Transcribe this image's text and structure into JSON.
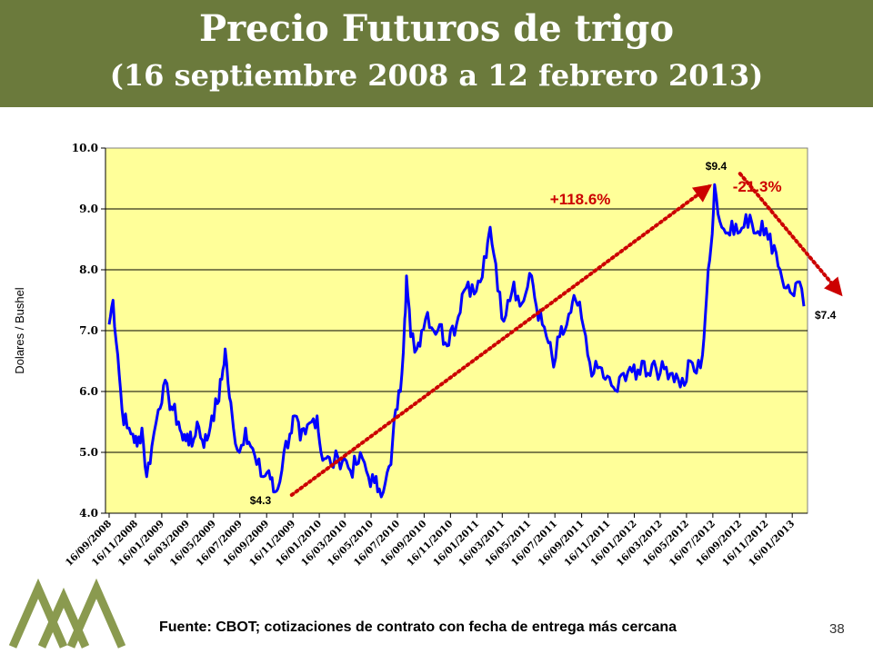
{
  "title": "Precio Futuros de trigo",
  "subtitle": "(16 septiembre 2008 a 12 febrero 2013)",
  "source": "Fuente: CBOT; cotizaciones de contrato con fecha de entrega más cercana",
  "page_number": "38",
  "colors": {
    "band": "#6b7a3c",
    "plot_background": "#ffff99",
    "series": "#0000ff",
    "annotation": "#cc0000",
    "logo": "#8a9a4f"
  },
  "chart_data": {
    "type": "line",
    "ylabel": "Dolares / Bushel",
    "ylim": [
      4.0,
      10.0
    ],
    "yticks": [
      "4.0",
      "5.0",
      "6.0",
      "7.0",
      "8.0",
      "9.0",
      "10.0"
    ],
    "xticks": [
      "16/09/2008",
      "16/11/2008",
      "16/01/2009",
      "16/03/2009",
      "16/05/2009",
      "16/07/2009",
      "16/09/2009",
      "16/11/2009",
      "16/01/2010",
      "16/03/2010",
      "16/05/2010",
      "16/07/2010",
      "16/09/2010",
      "16/11/2010",
      "16/01/2011",
      "16/03/2011",
      "16/05/2011",
      "16/07/2011",
      "16/09/2011",
      "16/11/2011",
      "16/01/2012",
      "16/03/2012",
      "16/05/2012",
      "16/07/2012",
      "16/09/2012",
      "16/11/2012",
      "16/01/2013"
    ],
    "grid": true,
    "series": [
      {
        "points": [
          [
            "2008-09-16",
            7.1
          ],
          [
            "2008-09-25",
            7.5
          ],
          [
            "2008-10-06",
            6.6
          ],
          [
            "2008-10-16",
            5.7
          ],
          [
            "2008-10-28",
            5.4
          ],
          [
            "2008-11-10",
            5.3
          ],
          [
            "2008-11-20",
            5.1
          ],
          [
            "2008-12-01",
            5.4
          ],
          [
            "2008-12-12",
            4.6
          ],
          [
            "2008-12-24",
            5.1
          ],
          [
            "2009-01-08",
            5.7
          ],
          [
            "2009-01-20",
            6.1
          ],
          [
            "2009-02-01",
            5.9
          ],
          [
            "2009-02-10",
            5.7
          ],
          [
            "2009-02-24",
            5.5
          ],
          [
            "2009-03-06",
            5.2
          ],
          [
            "2009-03-16",
            5.3
          ],
          [
            "2009-03-27",
            5.1
          ],
          [
            "2009-04-08",
            5.5
          ],
          [
            "2009-04-20",
            5.2
          ],
          [
            "2009-05-01",
            5.2
          ],
          [
            "2009-05-12",
            5.6
          ],
          [
            "2009-05-25",
            5.8
          ],
          [
            "2009-06-04",
            6.2
          ],
          [
            "2009-06-12",
            6.7
          ],
          [
            "2009-06-22",
            5.9
          ],
          [
            "2009-07-01",
            5.4
          ],
          [
            "2009-07-15",
            5.0
          ],
          [
            "2009-07-29",
            5.4
          ],
          [
            "2009-08-10",
            5.1
          ],
          [
            "2009-08-24",
            4.8
          ],
          [
            "2009-09-08",
            4.6
          ],
          [
            "2009-09-21",
            4.7
          ],
          [
            "2009-10-02",
            4.35
          ],
          [
            "2009-10-12",
            4.4
          ],
          [
            "2009-10-26",
            5.0
          ],
          [
            "2009-11-09",
            5.3
          ],
          [
            "2009-11-20",
            5.6
          ],
          [
            "2009-12-03",
            5.2
          ],
          [
            "2009-12-15",
            5.3
          ],
          [
            "2009-12-29",
            5.5
          ],
          [
            "2010-01-11",
            5.6
          ],
          [
            "2010-01-20",
            5.0
          ],
          [
            "2010-02-01",
            4.9
          ],
          [
            "2010-02-12",
            4.8
          ],
          [
            "2010-03-01",
            4.9
          ],
          [
            "2010-03-15",
            4.9
          ],
          [
            "2010-03-29",
            4.7
          ],
          [
            "2010-04-12",
            4.8
          ],
          [
            "2010-04-26",
            4.9
          ],
          [
            "2010-05-10",
            4.6
          ],
          [
            "2010-05-24",
            4.5
          ],
          [
            "2010-06-04",
            4.4
          ],
          [
            "2010-06-18",
            4.5
          ],
          [
            "2010-07-01",
            4.8
          ],
          [
            "2010-07-12",
            5.7
          ],
          [
            "2010-07-23",
            6.0
          ],
          [
            "2010-08-02",
            7.2
          ],
          [
            "2010-08-06",
            7.9
          ],
          [
            "2010-08-16",
            6.9
          ],
          [
            "2010-08-30",
            6.7
          ],
          [
            "2010-09-10",
            7.0
          ],
          [
            "2010-09-24",
            7.3
          ],
          [
            "2010-10-08",
            7.0
          ],
          [
            "2010-10-22",
            7.1
          ],
          [
            "2010-11-04",
            6.8
          ],
          [
            "2010-11-16",
            7.0
          ],
          [
            "2010-11-30",
            7.1
          ],
          [
            "2010-12-13",
            7.6
          ],
          [
            "2010-12-27",
            7.8
          ],
          [
            "2011-01-10",
            7.6
          ],
          [
            "2011-01-24",
            7.8
          ],
          [
            "2011-02-07",
            8.2
          ],
          [
            "2011-02-16",
            8.7
          ],
          [
            "2011-03-01",
            8.1
          ],
          [
            "2011-03-15",
            7.2
          ],
          [
            "2011-03-29",
            7.5
          ],
          [
            "2011-04-12",
            7.8
          ],
          [
            "2011-04-26",
            7.4
          ],
          [
            "2011-05-09",
            7.6
          ],
          [
            "2011-05-23",
            7.9
          ],
          [
            "2011-06-03",
            7.4
          ],
          [
            "2011-06-17",
            7.1
          ],
          [
            "2011-07-01",
            6.8
          ],
          [
            "2011-07-13",
            6.4
          ],
          [
            "2011-07-27",
            6.9
          ],
          [
            "2011-08-08",
            7.0
          ],
          [
            "2011-08-22",
            7.3
          ],
          [
            "2011-09-02",
            7.5
          ],
          [
            "2011-09-16",
            7.2
          ],
          [
            "2011-09-30",
            6.6
          ],
          [
            "2011-10-14",
            6.3
          ],
          [
            "2011-10-28",
            6.4
          ],
          [
            "2011-11-10",
            6.2
          ],
          [
            "2011-11-24",
            6.1
          ],
          [
            "2011-12-08",
            6.0
          ],
          [
            "2011-12-22",
            6.3
          ],
          [
            "2012-01-06",
            6.4
          ],
          [
            "2012-01-20",
            6.2
          ],
          [
            "2012-02-03",
            6.5
          ],
          [
            "2012-02-17",
            6.3
          ],
          [
            "2012-03-02",
            6.5
          ],
          [
            "2012-03-16",
            6.3
          ],
          [
            "2012-03-30",
            6.4
          ],
          [
            "2012-04-13",
            6.3
          ],
          [
            "2012-04-27",
            6.2
          ],
          [
            "2012-05-11",
            6.1
          ],
          [
            "2012-05-25",
            6.5
          ],
          [
            "2012-06-08",
            6.3
          ],
          [
            "2012-06-22",
            6.6
          ],
          [
            "2012-07-02",
            7.6
          ],
          [
            "2012-07-12",
            8.4
          ],
          [
            "2012-07-20",
            9.4
          ],
          [
            "2012-08-01",
            8.8
          ],
          [
            "2012-08-15",
            8.6
          ],
          [
            "2012-08-29",
            8.8
          ],
          [
            "2012-09-12",
            8.6
          ],
          [
            "2012-09-26",
            8.7
          ],
          [
            "2012-10-10",
            8.9
          ],
          [
            "2012-10-24",
            8.6
          ],
          [
            "2012-11-07",
            8.8
          ],
          [
            "2012-11-21",
            8.5
          ],
          [
            "2012-12-05",
            8.4
          ],
          [
            "2012-12-19",
            8.0
          ],
          [
            "2013-01-02",
            7.7
          ],
          [
            "2013-01-16",
            7.6
          ],
          [
            "2013-01-28",
            7.8
          ],
          [
            "2013-02-12",
            7.4
          ]
        ]
      }
    ],
    "annotations": [
      {
        "text": "$4.3",
        "x": "2009-10-02",
        "y": 4.3
      },
      {
        "text": "$9.4",
        "x": "2012-07-20",
        "y": 9.4
      },
      {
        "text": "$7.4",
        "x": "2013-02-12",
        "y": 7.4
      },
      {
        "text": "+118.6%",
        "from": [
          "2009-10-02",
          4.3
        ],
        "to": [
          "2012-07-20",
          9.4
        ]
      },
      {
        "text": "-21.3%",
        "from": [
          "2012-07-20",
          9.4
        ],
        "to": [
          "2013-02-12",
          7.4
        ]
      }
    ]
  }
}
